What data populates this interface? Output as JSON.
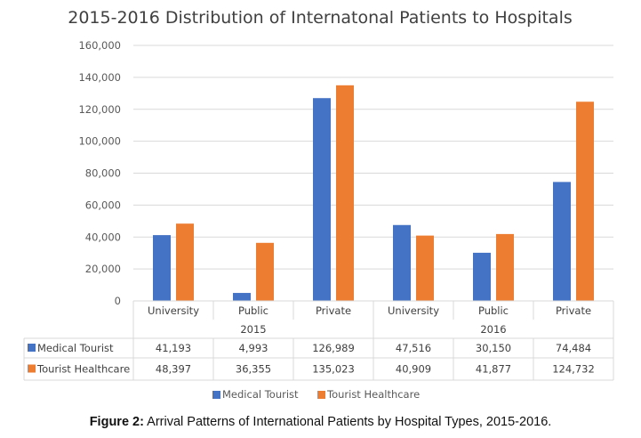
{
  "chart_data": {
    "type": "bar",
    "title": "2015-2016 Distribution of Internatonal Patients to Hospitals",
    "xlabel": "",
    "ylabel": "",
    "ylim": [
      0,
      160000
    ],
    "yticks": [
      0,
      20000,
      40000,
      60000,
      80000,
      100000,
      120000,
      140000,
      160000
    ],
    "ytick_labels": [
      "0",
      "20,000",
      "40,000",
      "60,000",
      "80,000",
      "100,000",
      "120,000",
      "140,000",
      "160,000"
    ],
    "grid": true,
    "groups": [
      {
        "label": "2015",
        "categories": [
          "University",
          "Public",
          "Private"
        ]
      },
      {
        "label": "2016",
        "categories": [
          "University",
          "Public",
          "Private"
        ]
      }
    ],
    "categories": [
      "University",
      "Public",
      "Private",
      "University",
      "Public",
      "Private"
    ],
    "series": [
      {
        "name": "Medical Tourist",
        "color": "#4472C4",
        "values": [
          41193,
          4993,
          126989,
          47516,
          30150,
          74484
        ],
        "labels": [
          "41,193",
          "4,993",
          "126,989",
          "47,516",
          "30,150",
          "74,484"
        ]
      },
      {
        "name": "Tourist Healthcare",
        "color": "#ED7D31",
        "values": [
          48397,
          36355,
          135023,
          40909,
          41877,
          124732
        ],
        "labels": [
          "48,397",
          "36,355",
          "135,023",
          "40,909",
          "41,877",
          "124,732"
        ]
      }
    ],
    "data_table": true,
    "legend": "bottom"
  },
  "caption": {
    "prefix": "Figure 2:",
    "text": " Arrival Patterns of International Patients by Hospital Types, 2015-2016."
  }
}
